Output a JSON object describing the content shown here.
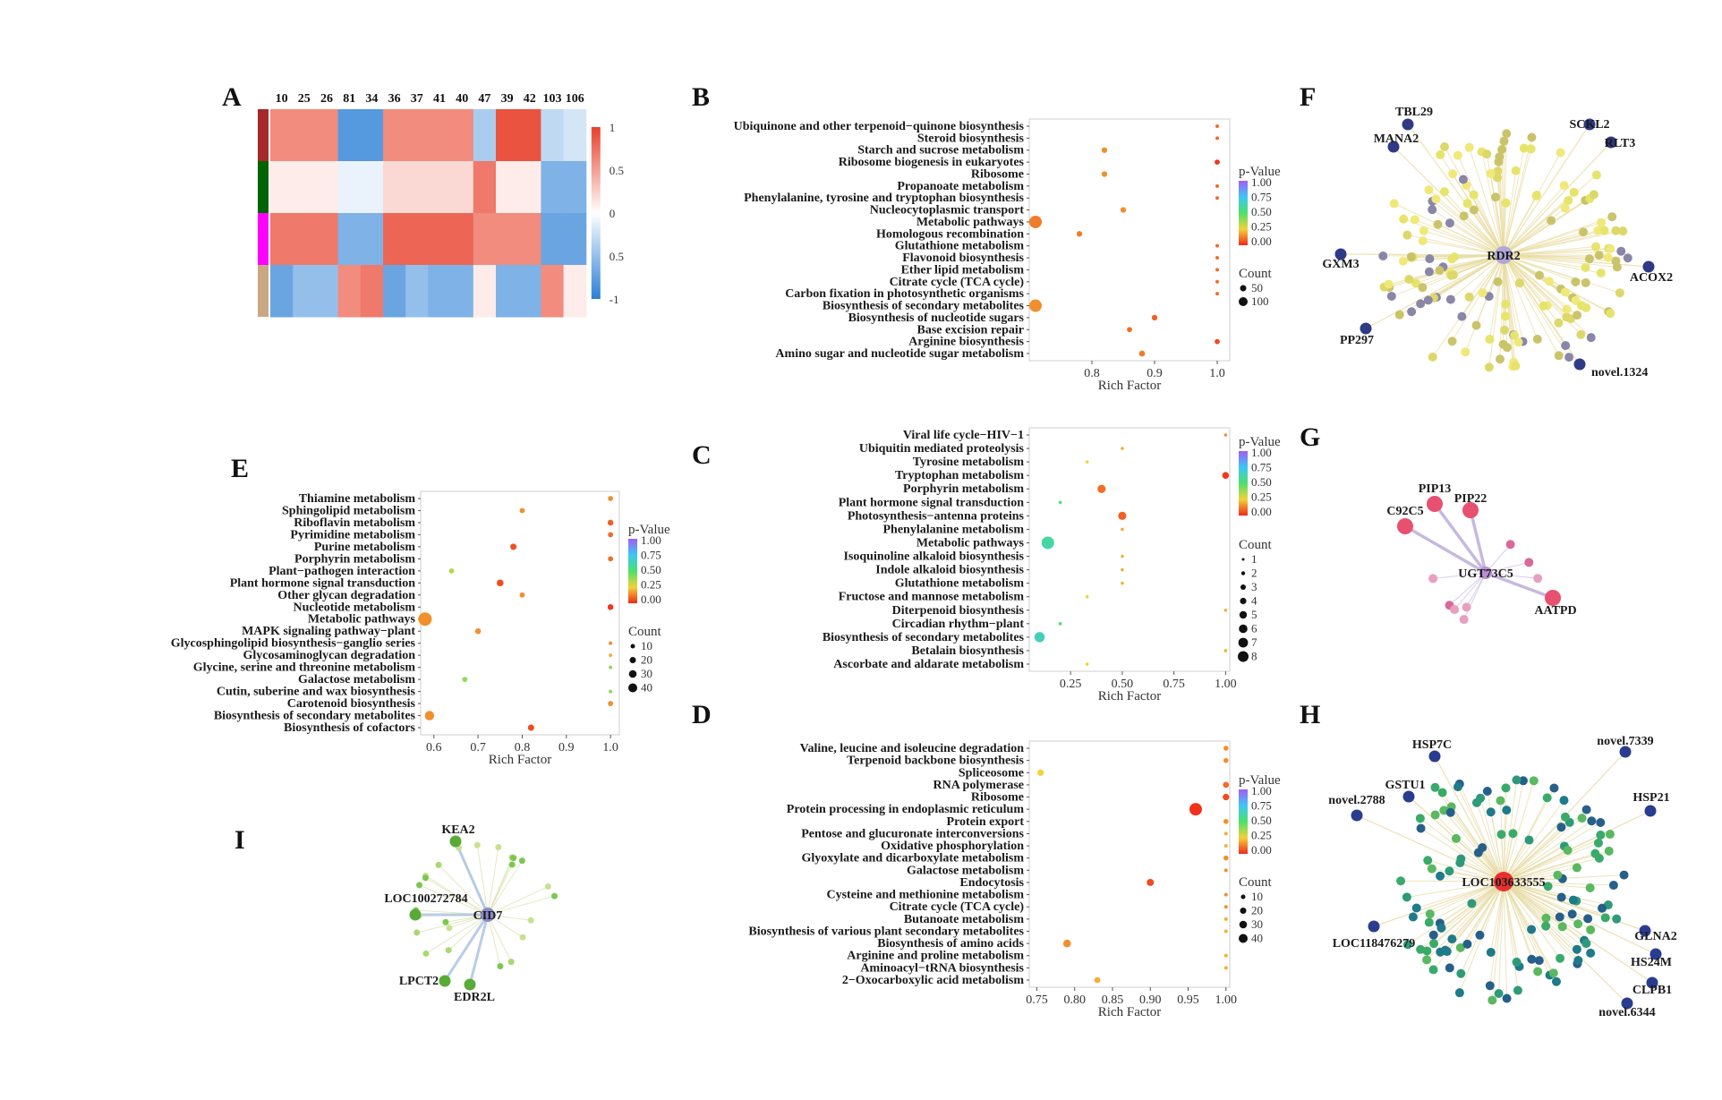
{
  "panels": {
    "A": {
      "label": "A",
      "columns": [
        "10",
        "25",
        "26",
        "81",
        "34",
        "36",
        "37",
        "41",
        "40",
        "47",
        "39",
        "42",
        "103",
        "106"
      ],
      "legend_ticks": [
        "1",
        "0.5",
        "0",
        "0.5",
        "-1"
      ],
      "group_colors": [
        "#a52a2a",
        "#006400",
        "#ff00ff",
        "#c8a882"
      ],
      "color_low": "#2a7fd6",
      "color_mid": "#ffffff",
      "color_high": "#e8402a"
    },
    "B": {
      "label": "B",
      "xlabel": "Rich Factor",
      "xticks": [
        "0.8",
        "0.9",
        "1.0"
      ],
      "pval_title": "p-Value",
      "pval_ticks": [
        "1.00",
        "0.75",
        "0.50",
        "0.25",
        "0.00"
      ],
      "count_title": "Count",
      "count_ticks": [
        "50",
        "100"
      ]
    },
    "C": {
      "label": "C",
      "xlabel": "Rich Factor",
      "xticks": [
        "0.25",
        "0.50",
        "0.75",
        "1.00"
      ],
      "pval_title": "p-Value",
      "pval_ticks": [
        "1.00",
        "0.75",
        "0.50",
        "0.25",
        "0.00"
      ],
      "count_title": "Count",
      "count_ticks": [
        "1",
        "2",
        "3",
        "4",
        "5",
        "6",
        "7",
        "8"
      ]
    },
    "D": {
      "label": "D",
      "xlabel": "Rich Factor",
      "xticks": [
        "0.75",
        "0.80",
        "0.85",
        "0.90",
        "0.95",
        "1.00"
      ],
      "pval_title": "p-Value",
      "pval_ticks": [
        "1.00",
        "0.75",
        "0.50",
        "0.25",
        "0.00"
      ],
      "count_title": "Count",
      "count_ticks": [
        "10",
        "20",
        "30",
        "40"
      ]
    },
    "E": {
      "label": "E",
      "xlabel": "Rich Factor",
      "xticks": [
        "0.6",
        "0.7",
        "0.8",
        "0.9",
        "1.0"
      ],
      "pval_title": "p-Value",
      "pval_ticks": [
        "1.00",
        "0.75",
        "0.50",
        "0.25",
        "0.00"
      ],
      "count_title": "Count",
      "count_ticks": [
        "10",
        "20",
        "30",
        "40"
      ]
    },
    "F": {
      "label": "F",
      "hub": "RDR2",
      "labeled_nodes": [
        "TBL29",
        "MANA2",
        "SCKL2",
        "RLT3",
        "GXM3",
        "ACOX2",
        "PP297",
        "novel.1324"
      ]
    },
    "G": {
      "label": "G",
      "hub": "UGT73C5",
      "labeled_nodes": [
        "PIP13",
        "PIP22",
        "C92C5",
        "AATPD"
      ]
    },
    "H": {
      "label": "H",
      "hub": "LOC103633555",
      "labeled_nodes": [
        "HSP7C",
        "novel.7339",
        "GSTU1",
        "novel.2788",
        "HSP21",
        "LOC118476279",
        "GLNA2",
        "HS24M",
        "CLPB1",
        "novel.6344"
      ]
    },
    "I": {
      "label": "I",
      "hub": "CID7",
      "labeled_nodes": [
        "KEA2",
        "LOC100272784",
        "LPCT2",
        "EDR2L"
      ]
    }
  },
  "chart_data": [
    {
      "panel": "A",
      "type": "heatmap",
      "columns": [
        "10",
        "25",
        "26",
        "81",
        "34",
        "36",
        "37",
        "41",
        "40",
        "47",
        "39",
        "42",
        "103",
        "106"
      ],
      "value_range": [
        -1,
        1
      ],
      "rows": [
        [
          0.6,
          0.6,
          0.6,
          -0.8,
          -0.8,
          0.6,
          0.6,
          0.6,
          0.6,
          -0.4,
          0.9,
          0.9,
          -0.3,
          -0.2
        ],
        [
          0.1,
          0.1,
          0.1,
          -0.1,
          -0.1,
          0.2,
          0.2,
          0.2,
          0.2,
          0.7,
          0.1,
          0.1,
          -0.6,
          -0.6
        ],
        [
          0.7,
          0.7,
          0.7,
          -0.6,
          -0.6,
          0.8,
          0.8,
          0.8,
          0.8,
          0.6,
          0.6,
          0.6,
          -0.7,
          -0.7
        ],
        [
          -0.7,
          -0.5,
          -0.5,
          0.6,
          0.7,
          -0.7,
          -0.5,
          -0.6,
          -0.6,
          0.1,
          -0.6,
          -0.6,
          0.6,
          0.1
        ]
      ]
    },
    {
      "panel": "B",
      "type": "scatter",
      "terms": [
        "Ubiquinone and other terpenoid−quinone biosynthesis",
        "Steroid biosynthesis",
        "Starch and sucrose metabolism",
        "Ribosome biogenesis in eukaryotes",
        "Ribosome",
        "Propanoate metabolism",
        "Phenylalanine, tyrosine and tryptophan biosynthesis",
        "Nucleocytoplasmic transport",
        "Metabolic pathways",
        "Homologous recombination",
        "Glutathione metabolism",
        "Flavonoid biosynthesis",
        "Ether lipid metabolism",
        "Citrate cycle (TCA cycle)",
        "Carbon fixation in photosynthetic organisms",
        "Biosynthesis of secondary metabolites",
        "Biosynthesis of nucleotide sugars",
        "Base excision repair",
        "Arginine biosynthesis",
        "Amino sugar and nucleotide sugar metabolism"
      ],
      "x": [
        1.0,
        1.0,
        0.82,
        1.0,
        0.82,
        1.0,
        1.0,
        0.85,
        0.71,
        0.78,
        1.0,
        1.0,
        1.0,
        1.0,
        1.0,
        0.71,
        0.9,
        0.86,
        1.0,
        0.88
      ],
      "pvalue": [
        0.1,
        0.1,
        0.15,
        0.02,
        0.15,
        0.1,
        0.1,
        0.15,
        0.12,
        0.12,
        0.1,
        0.1,
        0.1,
        0.1,
        0.1,
        0.15,
        0.08,
        0.1,
        0.05,
        0.12
      ],
      "count": [
        5,
        5,
        10,
        8,
        10,
        5,
        5,
        10,
        100,
        10,
        5,
        5,
        5,
        5,
        5,
        100,
        10,
        8,
        8,
        12
      ],
      "xlim": [
        0.7,
        1.02
      ],
      "xlabel": "Rich Factor"
    },
    {
      "panel": "C",
      "type": "scatter",
      "terms": [
        "Viral life cycle−HIV−1",
        "Ubiquitin mediated proteolysis",
        "Tyrosine metabolism",
        "Tryptophan metabolism",
        "Porphyrin metabolism",
        "Plant hormone signal transduction",
        "Photosynthesis−antenna proteins",
        "Phenylalanine metabolism",
        "Metabolic pathways",
        "Isoquinoline alkaloid biosynthesis",
        "Indole alkaloid biosynthesis",
        "Glutathione metabolism",
        "Fructose and mannose metabolism",
        "Diterpenoid biosynthesis",
        "Circadian rhythm−plant",
        "Biosynthesis of secondary metabolites",
        "Betalain biosynthesis",
        "Ascorbate and aldarate metabolism"
      ],
      "x": [
        1.0,
        0.5,
        0.33,
        1.0,
        0.4,
        0.2,
        0.5,
        0.5,
        0.14,
        0.5,
        0.5,
        0.5,
        0.33,
        1.0,
        0.2,
        0.1,
        1.0,
        0.33
      ],
      "pvalue": [
        0.15,
        0.2,
        0.25,
        0.02,
        0.1,
        0.5,
        0.08,
        0.2,
        0.6,
        0.2,
        0.2,
        0.2,
        0.25,
        0.2,
        0.5,
        0.65,
        0.2,
        0.25
      ],
      "count": [
        1,
        1,
        1,
        2,
        3,
        1,
        3,
        1,
        8,
        1,
        1,
        1,
        1,
        1,
        1,
        5,
        1,
        1
      ],
      "xlim": [
        0.05,
        1.02
      ],
      "xlabel": "Rich Factor"
    },
    {
      "panel": "D",
      "type": "scatter",
      "terms": [
        "Valine, leucine and isoleucine degradation",
        "Terpenoid backbone biosynthesis",
        "Spliceosome",
        "RNA polymerase",
        "Ribosome",
        "Protein processing in endoplasmic reticulum",
        "Protein export",
        "Pentose and glucuronate interconversions",
        "Oxidative phosphorylation",
        "Glyoxylate and dicarboxylate metabolism",
        "Galactose metabolism",
        "Endocytosis",
        "Cysteine and methionine metabolism",
        "Citrate cycle (TCA cycle)",
        "Butanoate metabolism",
        "Biosynthesis of various plant secondary metabolites",
        "Biosynthesis of amino acids",
        "Arginine and proline metabolism",
        "Aminoacyl−tRNA biosynthesis",
        "2−Oxocarboxylic acid metabolism"
      ],
      "x": [
        1.0,
        1.0,
        0.755,
        1.0,
        1.0,
        0.96,
        1.0,
        1.0,
        1.0,
        1.0,
        1.0,
        0.9,
        1.0,
        1.0,
        1.0,
        1.0,
        0.79,
        1.0,
        1.0,
        0.83
      ],
      "pvalue": [
        0.15,
        0.15,
        0.25,
        0.1,
        0.05,
        0.01,
        0.15,
        0.2,
        0.2,
        0.15,
        0.15,
        0.05,
        0.15,
        0.15,
        0.2,
        0.2,
        0.15,
        0.2,
        0.2,
        0.2
      ],
      "count": [
        3,
        3,
        6,
        5,
        6,
        40,
        3,
        2,
        2,
        3,
        2,
        8,
        2,
        2,
        2,
        2,
        10,
        2,
        2,
        5
      ],
      "xlim": [
        0.74,
        1.005
      ],
      "xlabel": "Rich Factor"
    },
    {
      "panel": "E",
      "type": "scatter",
      "terms": [
        "Thiamine metabolism",
        "Sphingolipid metabolism",
        "Riboflavin metabolism",
        "Pyrimidine metabolism",
        "Purine metabolism",
        "Porphyrin metabolism",
        "Plant−pathogen interaction",
        "Plant hormone signal transduction",
        "Other glycan degradation",
        "Nucleotide metabolism",
        "Metabolic pathways",
        "MAPK signaling pathway−plant",
        "Glycosphingolipid biosynthesis−ganglio series",
        "Glycosaminoglycan degradation",
        "Glycine, serine and threonine metabolism",
        "Galactose metabolism",
        "Cutin, suberine and wax biosynthesis",
        "Carotenoid biosynthesis",
        "Biosynthesis of secondary metabolites",
        "Biosynthesis of cofactors"
      ],
      "x": [
        1.0,
        0.8,
        1.0,
        1.0,
        0.78,
        1.0,
        0.64,
        0.75,
        0.8,
        1.0,
        0.58,
        0.7,
        1.0,
        1.0,
        1.0,
        0.67,
        1.0,
        1.0,
        0.59,
        0.82
      ],
      "pvalue": [
        0.15,
        0.15,
        0.08,
        0.1,
        0.06,
        0.1,
        0.35,
        0.05,
        0.15,
        0.02,
        0.15,
        0.15,
        0.15,
        0.2,
        0.4,
        0.4,
        0.4,
        0.15,
        0.15,
        0.05
      ],
      "count": [
        3,
        3,
        4,
        3,
        5,
        3,
        3,
        6,
        3,
        4,
        40,
        4,
        2,
        2,
        2,
        3,
        2,
        3,
        15,
        5
      ],
      "xlim": [
        0.57,
        1.02
      ],
      "xlabel": "Rich Factor"
    }
  ]
}
